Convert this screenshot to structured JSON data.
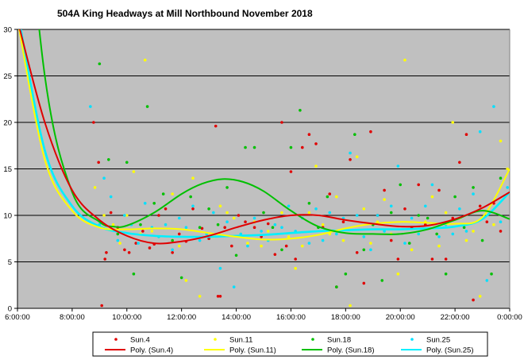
{
  "chart_data": {
    "type": "scatter",
    "title": "504A King Headways at Mill Northbound November 2018",
    "xlabel": "",
    "ylabel": "",
    "xlim": [
      "6:00:00",
      "0:00:00"
    ],
    "ylim": [
      0,
      30
    ],
    "x_ticks": [
      "6:00:00",
      "8:00:00",
      "10:00:00",
      "12:00:00",
      "14:00:00",
      "16:00:00",
      "18:00:00",
      "20:00:00",
      "22:00:00",
      "0:00:00"
    ],
    "y_ticks": [
      "0",
      "5",
      "10",
      "15",
      "20",
      "25",
      "30"
    ],
    "grid": "horizontal",
    "background": "#c0c0c0",
    "legend_position": "bottom",
    "series": [
      {
        "name": "Sun.4",
        "kind": "points",
        "color": "#e00000",
        "x": [
          "8:47",
          "8:58",
          "9:05",
          "9:12",
          "9:15",
          "9:25",
          "9:40",
          "9:55",
          "10:05",
          "10:20",
          "10:35",
          "10:50",
          "11:00",
          "11:10",
          "11:25",
          "11:40",
          "11:55",
          "12:10",
          "12:25",
          "12:45",
          "13:00",
          "13:15",
          "13:20",
          "13:25",
          "13:35",
          "13:50",
          "14:05",
          "14:20",
          "14:40",
          "14:55",
          "15:10",
          "15:25",
          "15:40",
          "15:50",
          "16:00",
          "16:10",
          "16:25",
          "16:40",
          "16:55",
          "17:10",
          "17:25",
          "17:40",
          "17:55",
          "18:10",
          "18:25",
          "18:40",
          "18:55",
          "19:10",
          "19:25",
          "19:40",
          "19:55",
          "20:10",
          "20:25",
          "20:40",
          "20:55",
          "21:10",
          "21:25",
          "21:40",
          "21:55",
          "22:10",
          "22:25",
          "22:40",
          "22:55",
          "23:10",
          "23:25",
          "23:40"
        ],
        "y": [
          20,
          15.7,
          0.3,
          5.3,
          6,
          10.3,
          8.7,
          6.3,
          6,
          7,
          8.3,
          6.5,
          6.9,
          10,
          10.7,
          6,
          8,
          7.2,
          10.7,
          8.6,
          7.5,
          19.6,
          1.3,
          1.3,
          8.7,
          6.7,
          10,
          9.3,
          8.7,
          7.7,
          9.1,
          5.8,
          20,
          6.7,
          14.7,
          5.3,
          17.3,
          18.7,
          17.7,
          8.7,
          12.3,
          2.3,
          9.3,
          16,
          6,
          2.7,
          19,
          10,
          12.7,
          7.3,
          5.3,
          10.7,
          8.7,
          13.3,
          9,
          5.3,
          12.7,
          5.3,
          9.7,
          15.7,
          18.7,
          0.9,
          11,
          9.3,
          11.3,
          8.3
        ]
      },
      {
        "name": "Sun.11",
        "kind": "points",
        "color": "#ffff00",
        "x": [
          "8:50",
          "9:10",
          "9:30",
          "9:45",
          "10:00",
          "10:15",
          "10:30",
          "10:40",
          "10:55",
          "11:10",
          "11:25",
          "11:40",
          "11:55",
          "12:10",
          "12:25",
          "12:40",
          "12:55",
          "13:10",
          "13:25",
          "13:40",
          "13:55",
          "14:10",
          "14:25",
          "14:40",
          "14:55",
          "15:10",
          "15:25",
          "15:40",
          "15:55",
          "16:10",
          "16:25",
          "16:40",
          "16:55",
          "17:10",
          "17:25",
          "17:40",
          "17:55",
          "18:10",
          "18:25",
          "18:40",
          "18:55",
          "19:10",
          "19:25",
          "19:40",
          "19:55",
          "20:10",
          "20:25",
          "20:40",
          "20:55",
          "21:10",
          "21:25",
          "21:40",
          "21:55",
          "22:10",
          "22:25",
          "22:40",
          "22:55",
          "23:10",
          "23:25",
          "23:40",
          "23:55"
        ],
        "y": [
          13,
          10,
          9,
          7,
          10,
          14.7,
          8,
          26.7,
          8.3,
          7.7,
          9,
          12.3,
          6.7,
          3,
          14,
          1.3,
          8,
          7.7,
          11,
          10.3,
          9.7,
          8,
          7,
          9.3,
          6.7,
          8.3,
          9,
          10.3,
          7.7,
          4.3,
          6.7,
          10.3,
          15.3,
          9,
          8,
          12,
          7.3,
          0.3,
          16.3,
          10.7,
          7,
          9.3,
          11.7,
          8,
          3.7,
          26.7,
          6.3,
          8,
          9.3,
          12,
          6.7,
          10.3,
          20,
          9.7,
          7.3,
          8.3,
          1.3,
          10,
          9,
          18,
          15
        ]
      },
      {
        "name": "Sun.18",
        "kind": "points",
        "color": "#00c000",
        "x": [
          "9:00",
          "9:20",
          "9:40",
          "10:00",
          "10:15",
          "10:30",
          "10:45",
          "11:00",
          "11:20",
          "11:40",
          "12:00",
          "12:20",
          "12:40",
          "13:00",
          "13:20",
          "13:40",
          "14:00",
          "14:20",
          "14:40",
          "15:00",
          "15:20",
          "15:40",
          "16:00",
          "16:20",
          "16:40",
          "17:00",
          "17:20",
          "17:40",
          "18:00",
          "18:20",
          "18:40",
          "19:00",
          "19:20",
          "19:40",
          "20:00",
          "20:20",
          "20:40",
          "21:00",
          "21:20",
          "21:40",
          "22:00",
          "22:20",
          "22:40",
          "23:00",
          "23:20",
          "23:40"
        ],
        "y": [
          26.3,
          16,
          8,
          15.7,
          3.7,
          9,
          21.7,
          11.3,
          12.3,
          7.3,
          3.3,
          12,
          8.7,
          10.7,
          9,
          13,
          5.7,
          17.3,
          17.3,
          10.3,
          8.7,
          6.3,
          17.3,
          21.3,
          11.3,
          8.7,
          12,
          2.3,
          3.7,
          18.7,
          6.3,
          9,
          3,
          10.3,
          13.3,
          7,
          10,
          9.7,
          8,
          3.7,
          12,
          8.7,
          13,
          7.3,
          3.7,
          14
        ]
      },
      {
        "name": "Sun.25",
        "kind": "points",
        "color": "#00e0ff",
        "x": [
          "8:40",
          "9:00",
          "9:10",
          "9:25",
          "9:40",
          "9:55",
          "10:10",
          "10:25",
          "10:40",
          "10:55",
          "11:10",
          "11:25",
          "11:40",
          "11:55",
          "12:10",
          "12:25",
          "12:40",
          "12:55",
          "13:10",
          "13:25",
          "13:40",
          "13:55",
          "14:10",
          "14:25",
          "14:40",
          "14:55",
          "15:10",
          "15:25",
          "15:40",
          "15:55",
          "16:10",
          "16:25",
          "16:40",
          "16:55",
          "17:10",
          "17:25",
          "17:40",
          "17:55",
          "18:10",
          "18:25",
          "18:40",
          "18:55",
          "19:10",
          "19:25",
          "19:40",
          "19:55",
          "20:10",
          "20:25",
          "20:40",
          "20:55",
          "21:10",
          "21:25",
          "21:40",
          "21:55",
          "22:10",
          "22:25",
          "22:40",
          "22:55",
          "23:10",
          "23:25",
          "23:40",
          "23:55"
        ],
        "y": [
          21.7,
          9,
          14,
          12,
          7.3,
          10,
          9,
          7,
          11.3,
          8.7,
          7.7,
          9,
          6.3,
          9.7,
          8.7,
          11,
          7.3,
          8,
          10.3,
          4.3,
          9.3,
          2.3,
          8,
          6.7,
          9.7,
          8.3,
          7.3,
          9,
          8.7,
          11,
          8.3,
          9.7,
          7,
          10.7,
          7.3,
          10.3,
          8,
          9.7,
          16.7,
          10,
          7.7,
          6.3,
          10,
          8.3,
          11,
          15.3,
          7,
          9.7,
          8,
          11,
          13.3,
          7.7,
          9,
          8,
          10.7,
          8.3,
          12.3,
          19,
          3,
          21.7,
          9.3,
          13
        ]
      },
      {
        "name": "Poly. (Sun.4)",
        "kind": "trend",
        "color": "#e00000",
        "x": [
          "6:00",
          "7:00",
          "8:00",
          "9:00",
          "10:00",
          "11:00",
          "12:00",
          "13:00",
          "14:00",
          "15:00",
          "16:00",
          "17:00",
          "18:00",
          "19:00",
          "20:00",
          "21:00",
          "22:00",
          "23:00",
          "0:00"
        ],
        "y": [
          31,
          20,
          12.7,
          9.5,
          7.8,
          7,
          7.2,
          7.8,
          8.7,
          9.5,
          10,
          10,
          9.5,
          9.1,
          8.8,
          8.9,
          9.6,
          10.8,
          12.5
        ]
      },
      {
        "name": "Poly. (Sun.11)",
        "kind": "trend",
        "color": "#ffff00",
        "x": [
          "6:00",
          "7:00",
          "8:00",
          "9:00",
          "10:00",
          "11:00",
          "12:00",
          "13:00",
          "14:00",
          "15:00",
          "16:00",
          "17:00",
          "18:00",
          "19:00",
          "20:00",
          "21:00",
          "22:00",
          "23:00",
          "0:00"
        ],
        "y": [
          31,
          16,
          10.5,
          8.7,
          8.5,
          8.6,
          8.5,
          8.1,
          7.7,
          7.4,
          7.5,
          7.9,
          8.6,
          9.1,
          9.3,
          9.2,
          9.1,
          9.8,
          15
        ]
      },
      {
        "name": "Poly. (Sun.18)",
        "kind": "trend",
        "color": "#00c000",
        "x": [
          "6:00",
          "7:00",
          "8:00",
          "9:00",
          "9:30",
          "10:00",
          "11:00",
          "12:00",
          "12:45",
          "13:30",
          "14:15",
          "15:00",
          "16:00",
          "17:00",
          "18:00",
          "19:00",
          "20:00",
          "21:00",
          "22:00",
          "23:00",
          "0:00"
        ],
        "y": [
          55,
          25,
          12.5,
          9.3,
          8.8,
          8.9,
          10.3,
          12.3,
          13.4,
          13.9,
          13.6,
          12.6,
          10.5,
          8.8,
          8.1,
          8,
          8,
          8.5,
          9.5,
          10.5,
          9.6
        ]
      },
      {
        "name": "Poly. (Sun.25)",
        "kind": "trend",
        "color": "#00f0ff",
        "x": [
          "6:00",
          "7:00",
          "8:00",
          "9:00",
          "10:00",
          "11:00",
          "12:00",
          "13:00",
          "14:00",
          "15:00",
          "16:00",
          "17:00",
          "18:00",
          "19:00",
          "20:00",
          "21:00",
          "22:00",
          "23:00",
          "0:00"
        ],
        "y": [
          32,
          17,
          11,
          8.8,
          8.1,
          7.8,
          7.7,
          7.7,
          7.8,
          7.9,
          8.1,
          8.3,
          8.4,
          8.5,
          8.5,
          8.6,
          8.8,
          9.6,
          12.5
        ]
      }
    ]
  }
}
